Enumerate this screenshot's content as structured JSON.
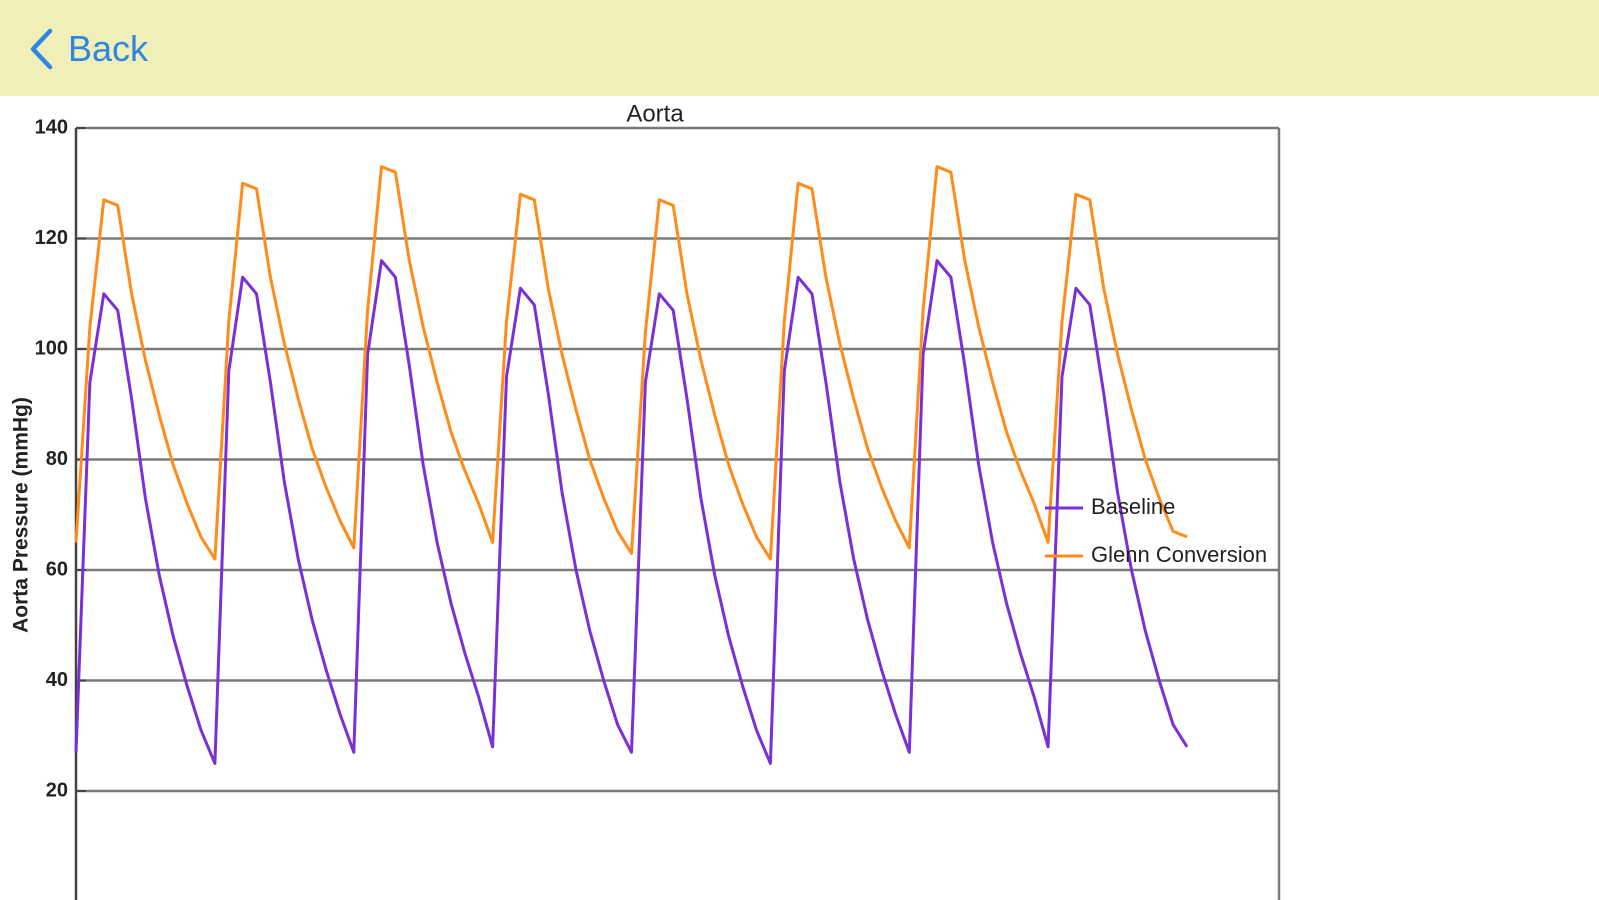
{
  "nav": {
    "back": "Back"
  },
  "chart_data": {
    "type": "line",
    "title": "Aorta",
    "y_label": "Aorta Pressure (mmHg)",
    "ylim": [
      0,
      140
    ],
    "yticks": [
      20,
      40,
      60,
      80,
      100,
      120,
      140
    ],
    "grid": true,
    "legend": "right",
    "series": [
      {
        "name": "Baseline",
        "color": "#7b2fd6",
        "values": [
          27,
          94,
          110,
          107,
          91,
          73,
          59,
          48,
          39,
          31,
          25,
          96,
          113,
          110,
          94,
          76,
          62,
          51,
          42,
          34,
          27,
          99,
          116,
          113,
          97,
          79,
          65,
          54,
          45,
          37,
          28,
          95,
          111,
          108,
          92,
          74,
          60,
          49,
          40,
          32,
          27,
          94,
          110,
          107,
          91,
          73,
          59,
          48,
          39,
          31,
          25,
          96,
          113,
          110,
          94,
          76,
          62,
          51,
          42,
          34,
          27,
          99,
          116,
          113,
          97,
          79,
          65,
          54,
          45,
          37,
          28,
          95,
          111,
          108,
          92,
          74,
          60,
          49,
          40,
          32,
          28
        ]
      },
      {
        "name": "Glenn Conversion",
        "color": "#ff8c1a",
        "values": [
          65,
          104,
          127,
          126,
          110,
          98,
          88,
          79,
          72,
          66,
          62,
          105,
          130,
          129,
          113,
          101,
          91,
          82,
          75,
          69,
          64,
          107,
          133,
          132,
          116,
          104,
          94,
          85,
          78,
          72,
          65,
          105,
          128,
          127,
          111,
          99,
          89,
          80,
          73,
          67,
          63,
          103,
          127,
          126,
          110,
          98,
          88,
          79,
          72,
          66,
          62,
          105,
          130,
          129,
          113,
          101,
          91,
          82,
          75,
          69,
          64,
          107,
          133,
          132,
          116,
          104,
          94,
          85,
          78,
          72,
          65,
          105,
          128,
          127,
          111,
          99,
          89,
          80,
          73,
          67,
          66
        ]
      }
    ]
  }
}
